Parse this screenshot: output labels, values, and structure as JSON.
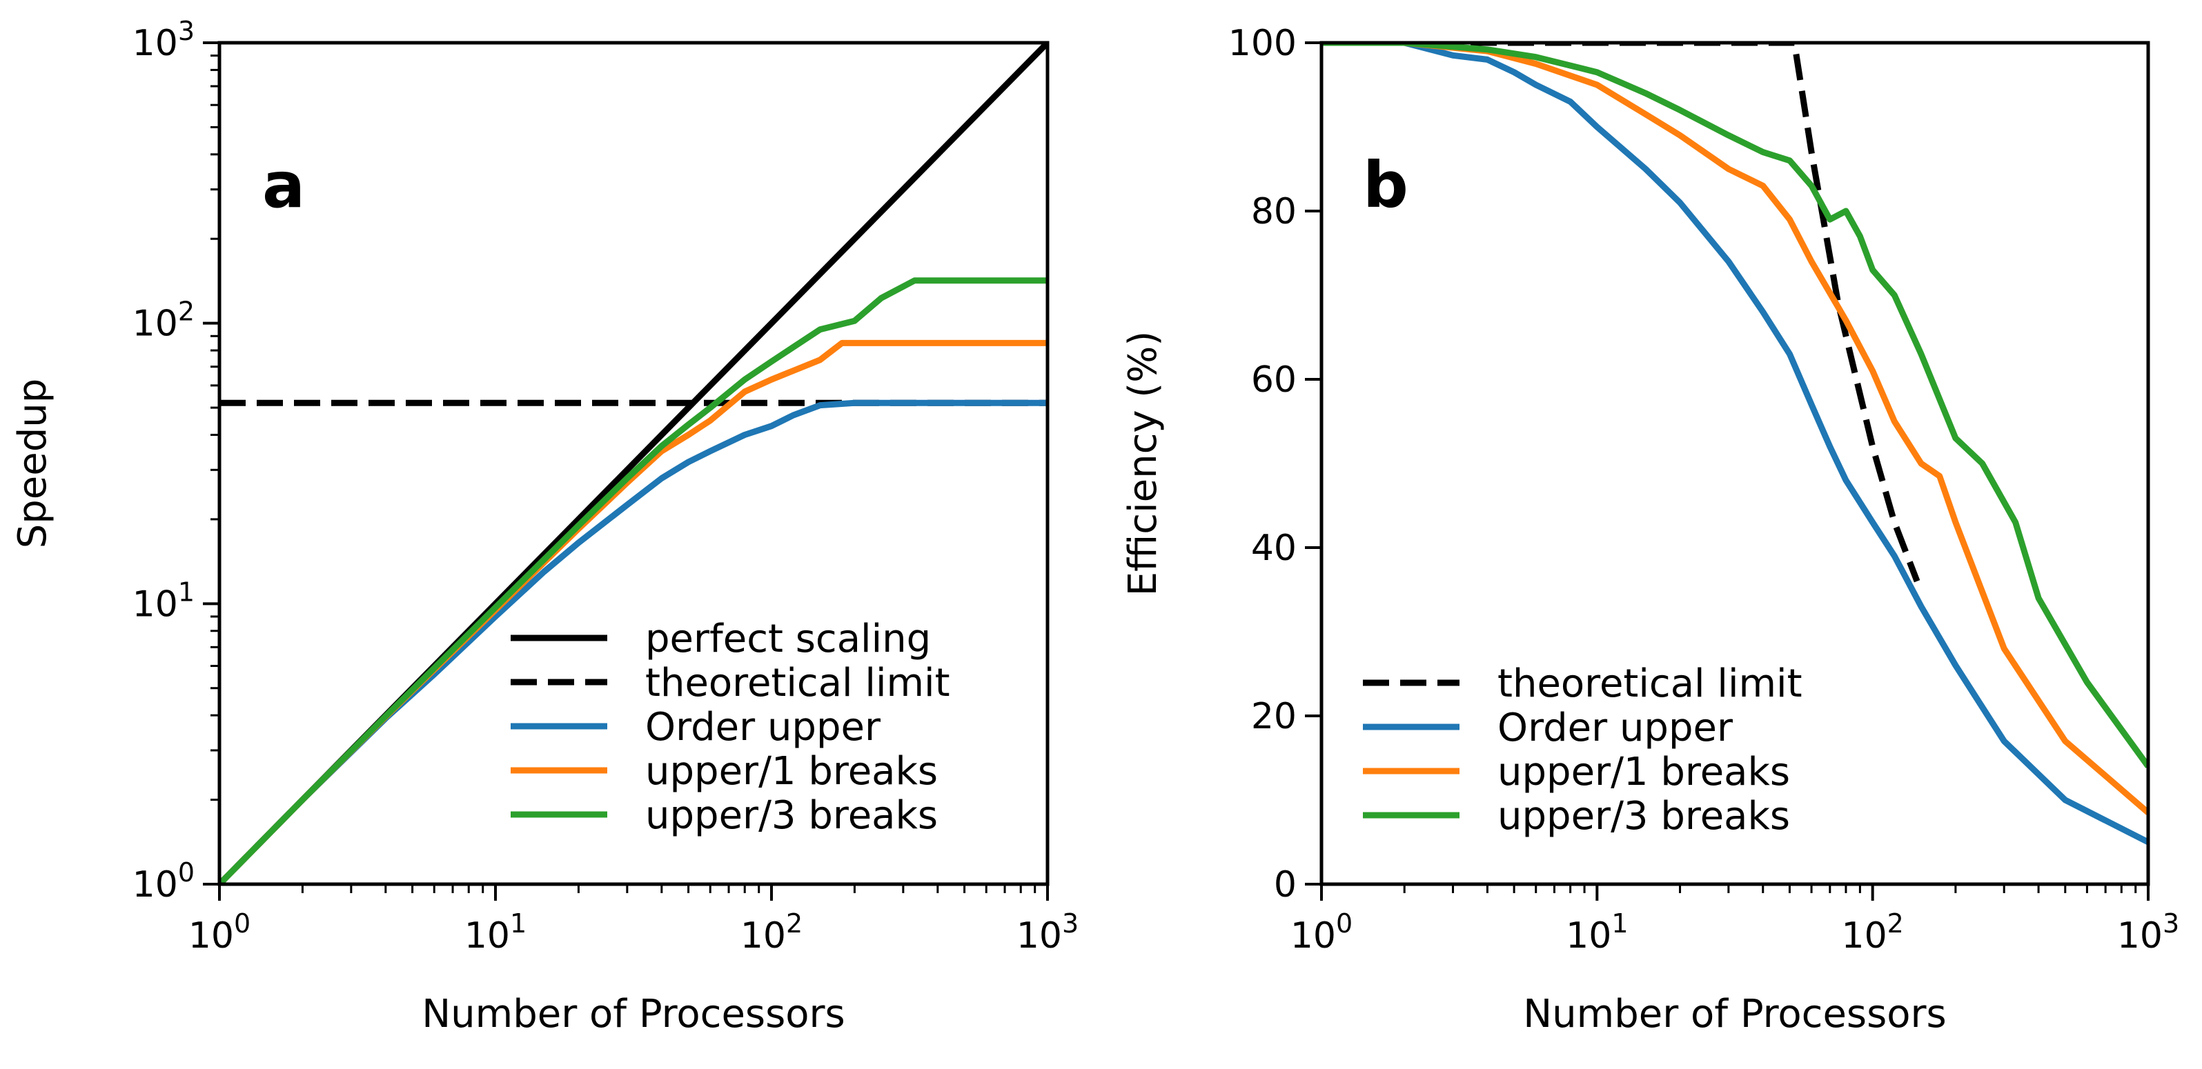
{
  "chart_data": [
    {
      "panel": "a",
      "type": "line",
      "xscale": "log",
      "yscale": "log",
      "xlim": [
        1,
        1000
      ],
      "ylim": [
        1,
        1000
      ],
      "xlabel": "Number of Processors",
      "ylabel": "Speedup",
      "xtick_labels": [
        {
          "base": "10",
          "exp": "0"
        },
        {
          "base": "10",
          "exp": "1"
        },
        {
          "base": "10",
          "exp": "2"
        },
        {
          "base": "10",
          "exp": "3"
        }
      ],
      "ytick_labels": [
        {
          "base": "10",
          "exp": "0"
        },
        {
          "base": "10",
          "exp": "1"
        },
        {
          "base": "10",
          "exp": "2"
        },
        {
          "base": "10",
          "exp": "3"
        }
      ],
      "legend_position": "lower right",
      "series": [
        {
          "name": "perfect scaling",
          "color": "#000000",
          "dash": "solid",
          "points": [
            [
              1,
              1
            ],
            [
              1000,
              1000
            ]
          ]
        },
        {
          "name": "theoretical limit",
          "color": "#000000",
          "dash": "dashed",
          "points": [
            [
              1,
              52
            ],
            [
              1000,
              52
            ]
          ]
        },
        {
          "name": "Order upper",
          "color": "#1f77b4",
          "dash": "solid",
          "points": [
            [
              1,
              1
            ],
            [
              2,
              2
            ],
            [
              4,
              3.9
            ],
            [
              6,
              5.6
            ],
            [
              10,
              9.0
            ],
            [
              15,
              13
            ],
            [
              20,
              16.5
            ],
            [
              30,
              22.5
            ],
            [
              40,
              28
            ],
            [
              50,
              32
            ],
            [
              60,
              35
            ],
            [
              80,
              40
            ],
            [
              100,
              43
            ],
            [
              120,
              47
            ],
            [
              150,
              51
            ],
            [
              200,
              52
            ],
            [
              1000,
              52
            ]
          ]
        },
        {
          "name": "upper/1 breaks",
          "color": "#ff7f0e",
          "dash": "solid",
          "points": [
            [
              1,
              1
            ],
            [
              2,
              2
            ],
            [
              4,
              3.95
            ],
            [
              10,
              9.5
            ],
            [
              20,
              18.5
            ],
            [
              30,
              27
            ],
            [
              40,
              35
            ],
            [
              50,
              40
            ],
            [
              60,
              45
            ],
            [
              80,
              57
            ],
            [
              100,
              63
            ],
            [
              150,
              74
            ],
            [
              180,
              85
            ],
            [
              1000,
              85
            ]
          ]
        },
        {
          "name": "upper/3 breaks",
          "color": "#2ca02c",
          "dash": "solid",
          "points": [
            [
              1,
              1
            ],
            [
              2,
              2
            ],
            [
              4,
              3.97
            ],
            [
              10,
              9.7
            ],
            [
              20,
              19
            ],
            [
              30,
              28
            ],
            [
              40,
              36.5
            ],
            [
              50,
              43.5
            ],
            [
              60,
              50
            ],
            [
              80,
              63
            ],
            [
              100,
              73
            ],
            [
              150,
              95
            ],
            [
              200,
              102
            ],
            [
              250,
              123
            ],
            [
              330,
              142
            ],
            [
              1000,
              142
            ]
          ]
        }
      ],
      "annotation": "a"
    },
    {
      "panel": "b",
      "type": "line",
      "xscale": "log",
      "yscale": "linear",
      "xlim": [
        1,
        1000
      ],
      "ylim": [
        0,
        100
      ],
      "xlabel": "Number of Processors",
      "ylabel": "Efficiency (%)",
      "xtick_labels": [
        {
          "base": "10",
          "exp": "0"
        },
        {
          "base": "10",
          "exp": "1"
        },
        {
          "base": "10",
          "exp": "2"
        },
        {
          "base": "10",
          "exp": "3"
        }
      ],
      "yticks": [
        0,
        20,
        40,
        60,
        80,
        100
      ],
      "legend_position": "lower left",
      "series": [
        {
          "name": "theoretical limit",
          "color": "#000000",
          "dash": "dashed",
          "points": [
            [
              1,
              100
            ],
            [
              50,
              100
            ],
            [
              52,
              100
            ],
            [
              60,
              87
            ],
            [
              75,
              69
            ],
            [
              100,
              52
            ],
            [
              120,
              43
            ],
            [
              145,
              36
            ]
          ]
        },
        {
          "name": "Order upper",
          "color": "#1f77b4",
          "dash": "solid",
          "points": [
            [
              1,
              100
            ],
            [
              2,
              100
            ],
            [
              3,
              98.5
            ],
            [
              4,
              98
            ],
            [
              5,
              96.5
            ],
            [
              6,
              95
            ],
            [
              8,
              93
            ],
            [
              10,
              90
            ],
            [
              15,
              85
            ],
            [
              20,
              81
            ],
            [
              30,
              74
            ],
            [
              40,
              68
            ],
            [
              50,
              63
            ],
            [
              60,
              57
            ],
            [
              70,
              52
            ],
            [
              80,
              48
            ],
            [
              100,
              43
            ],
            [
              120,
              39
            ],
            [
              150,
              33
            ],
            [
              200,
              26
            ],
            [
              300,
              17
            ],
            [
              500,
              10
            ],
            [
              1000,
              5
            ]
          ]
        },
        {
          "name": "upper/1 breaks",
          "color": "#ff7f0e",
          "dash": "solid",
          "points": [
            [
              1,
              100
            ],
            [
              2,
              100
            ],
            [
              4,
              99
            ],
            [
              6,
              97.5
            ],
            [
              10,
              95
            ],
            [
              15,
              91.5
            ],
            [
              20,
              89
            ],
            [
              30,
              85
            ],
            [
              40,
              83
            ],
            [
              50,
              79
            ],
            [
              60,
              74
            ],
            [
              80,
              67
            ],
            [
              100,
              61
            ],
            [
              120,
              55
            ],
            [
              150,
              50
            ],
            [
              175,
              48.5
            ],
            [
              200,
              43
            ],
            [
              300,
              28
            ],
            [
              500,
              17
            ],
            [
              1000,
              8.5
            ]
          ]
        },
        {
          "name": "upper/3 breaks",
          "color": "#2ca02c",
          "dash": "solid",
          "points": [
            [
              1,
              100
            ],
            [
              2,
              100
            ],
            [
              4,
              99.2
            ],
            [
              6,
              98.3
            ],
            [
              10,
              96.5
            ],
            [
              15,
              94
            ],
            [
              20,
              92
            ],
            [
              30,
              89
            ],
            [
              40,
              87
            ],
            [
              50,
              86
            ],
            [
              60,
              83
            ],
            [
              70,
              79
            ],
            [
              80,
              80
            ],
            [
              90,
              77
            ],
            [
              100,
              73
            ],
            [
              120,
              70
            ],
            [
              150,
              63
            ],
            [
              200,
              53
            ],
            [
              250,
              50
            ],
            [
              330,
              43
            ],
            [
              400,
              34
            ],
            [
              600,
              24
            ],
            [
              1000,
              14
            ]
          ]
        }
      ],
      "annotation": "b"
    }
  ]
}
